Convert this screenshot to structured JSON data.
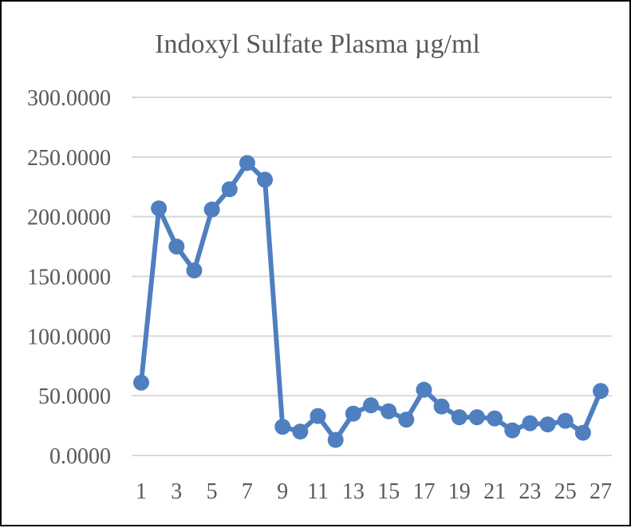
{
  "chart_data": {
    "type": "line",
    "title": "Indoxyl Sulfate Plasma µg/ml",
    "xlabel": "",
    "ylabel": "",
    "x": [
      1,
      2,
      3,
      4,
      5,
      6,
      7,
      8,
      9,
      10,
      11,
      12,
      13,
      14,
      15,
      16,
      17,
      18,
      19,
      20,
      21,
      22,
      23,
      24,
      25,
      26,
      27
    ],
    "x_tick_labels": [
      "1",
      "3",
      "5",
      "7",
      "9",
      "11",
      "13",
      "15",
      "17",
      "19",
      "21",
      "23",
      "25",
      "27"
    ],
    "y_tick_labels": [
      "0.0000",
      "50.0000",
      "100.0000",
      "150.0000",
      "200.0000",
      "250.0000",
      "300.0000"
    ],
    "ylim": [
      0,
      300
    ],
    "grid": true,
    "legend": "none",
    "series": [
      {
        "color": "#4f7fbf",
        "values": [
          61,
          207,
          175,
          155,
          206,
          223,
          245,
          231,
          24,
          20,
          33,
          13,
          35,
          42,
          37,
          30,
          55,
          41,
          32,
          32,
          31,
          21,
          27,
          26,
          29,
          19,
          54
        ]
      }
    ]
  }
}
